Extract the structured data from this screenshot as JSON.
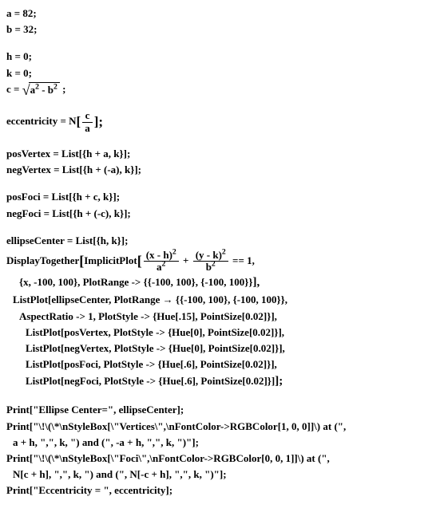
{
  "l1": "a = 82;",
  "l2": "b = 32;",
  "l3": "h = 0;",
  "l4": "k = 0;",
  "sqrt_lhs": "c = ",
  "sqrt_body_a": "a",
  "sqrt_body_minus": " - b",
  "sqrt_tail": " ;",
  "ecc_lhs": "eccentricity = N",
  "ecc_open": "[",
  "ecc_num": "c",
  "ecc_den": "a",
  "ecc_close": "];",
  "posV": "posVertex = List[{h + a, k}];",
  "negV": "negVertex = List[{h + (-a), k}];",
  "posF": "posFoci = List[{h + c, k}];",
  "negF": "negFoci = List[{h + (-c), k}];",
  "center": "ellipseCenter = List[{h, k}];",
  "dt_start": "DisplayTogether",
  "dt_b1": "[",
  "ip": "ImplicitPlot",
  "ip_b1": "[",
  "f1_num": "(x - h)",
  "f1_den": "a",
  "plus": " + ",
  "f2_num": "(y - k)",
  "f2_den": "b",
  "eq1": " == 1,",
  "dt_l2": "{x, -100, 100}, PlotRange -> {{-100, 100}, {-100, 100}}",
  "dt_l2_close": "],",
  "dt_l3": "ListPlot[ellipseCenter, PlotRange → {{-100, 100}, {-100, 100}},",
  "dt_l4": "AspectRatio -> 1, PlotStyle -> {Hue[.15], PointSize[0.02]}],",
  "dt_l5": "ListPlot[posVertex, PlotStyle -> {Hue[0], PointSize[0.02]}],",
  "dt_l6": "ListPlot[negVertex, PlotStyle -> {Hue[0], PointSize[0.02]}],",
  "dt_l7": "ListPlot[posFoci, PlotStyle -> {Hue[.6], PointSize[0.02]}],",
  "dt_l8": "ListPlot[negFoci, PlotStyle -> {Hue[.6], PointSize[0.02]}]",
  "dt_l8_close": "];",
  "p1": "Print[\"Ellipse Center=\", ellipseCenter];",
  "p2": "Print[\"\\!\\(\\*\\nStyleBox[\\\"Vertices\\\",\\nFontColor->RGBColor[1, 0, 0]]\\) at (\",",
  "p2b": "a + h, \",\", k, \") and (\", -a + h, \",\", k, \")\"];",
  "p3": "Print[\"\\!\\(\\*\\nStyleBox[\\\"Foci\\\",\\nFontColor->RGBColor[0, 0, 1]]\\) at (\",",
  "p3b": "N[c + h], \",\", k, \") and (\", N[-c + h], \",\", k, \")\"];",
  "p4": "Print[\"Eccentricity = \", eccentricity];"
}
